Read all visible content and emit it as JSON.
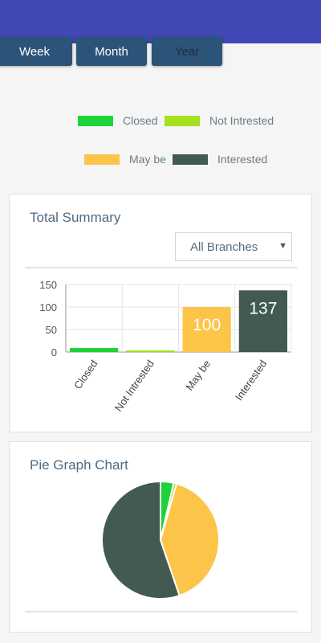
{
  "period_tabs": [
    {
      "label": "Week",
      "active": false
    },
    {
      "label": "Month",
      "active": false
    },
    {
      "label": "Year",
      "active": true
    }
  ],
  "legend": [
    {
      "label": "Closed",
      "color": "#1fd23a"
    },
    {
      "label": "Not Intrested",
      "color": "#a6e01d"
    },
    {
      "label": "May be",
      "color": "#fcc54a"
    },
    {
      "label": "Interested",
      "color": "#425a4f"
    }
  ],
  "summary": {
    "title": "Total Summary",
    "branch_select": "All Branches"
  },
  "pie_card": {
    "title": "Pie Graph Chart"
  },
  "chart_data": [
    {
      "type": "bar",
      "categories": [
        "Closed",
        "Not Intrested",
        "May be",
        "Interested"
      ],
      "values": [
        9,
        2,
        100,
        137
      ],
      "data_labels": [
        "",
        "",
        "100",
        "137"
      ],
      "colors": [
        "#1fd23a",
        "#a6e01d",
        "#fcc54a",
        "#425a4f"
      ],
      "yticks": [
        "0",
        "50",
        "100",
        "150"
      ],
      "ylim": [
        0,
        150
      ],
      "grid": true
    },
    {
      "type": "pie",
      "labels": [
        "Closed",
        "Not Intrested",
        "May be",
        "Interested"
      ],
      "values": [
        9,
        2,
        100,
        137
      ],
      "colors": [
        "#1fd23a",
        "#a6e01d",
        "#fcc54a",
        "#425a4f"
      ]
    }
  ]
}
